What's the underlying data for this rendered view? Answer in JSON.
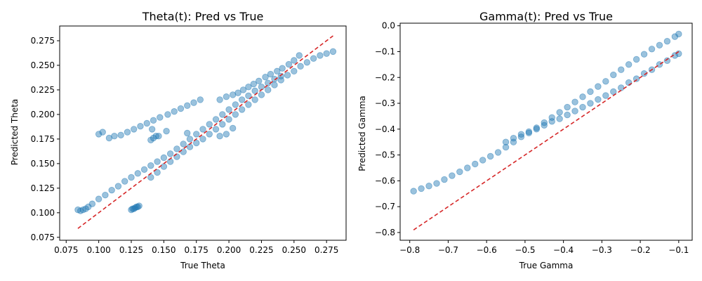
{
  "chart_data": [
    {
      "type": "scatter",
      "title": "Theta(t): Pred vs True",
      "xlabel": "True Theta",
      "ylabel": "Predicted Theta",
      "xlim": [
        0.07,
        0.29
      ],
      "ylim": [
        0.072,
        0.29
      ],
      "xticks": [
        "0.075",
        "0.100",
        "0.125",
        "0.150",
        "0.175",
        "0.200",
        "0.225",
        "0.250",
        "0.275"
      ],
      "yticks": [
        "0.075",
        "0.100",
        "0.125",
        "0.150",
        "0.175",
        "0.200",
        "0.225",
        "0.250",
        "0.275"
      ],
      "grid": false,
      "point_color": "#1f77b4",
      "reference_line_color": "#d62728",
      "reference_line": {
        "x": [
          0.084,
          0.28
        ],
        "y": [
          0.084,
          0.28
        ]
      },
      "series": [
        {
          "x": [
            0.084,
            0.086,
            0.088,
            0.09,
            0.092,
            0.095,
            0.1,
            0.105,
            0.11,
            0.115,
            0.12,
            0.125,
            0.13,
            0.135,
            0.14,
            0.145,
            0.15,
            0.155,
            0.16,
            0.165,
            0.17,
            0.175,
            0.18,
            0.185,
            0.19,
            0.195,
            0.2,
            0.205,
            0.21,
            0.215,
            0.22,
            0.225,
            0.23,
            0.235,
            0.24
          ],
          "y": [
            0.103,
            0.102,
            0.103,
            0.104,
            0.106,
            0.109,
            0.114,
            0.118,
            0.123,
            0.127,
            0.132,
            0.136,
            0.14,
            0.144,
            0.148,
            0.152,
            0.156,
            0.16,
            0.165,
            0.17,
            0.175,
            0.18,
            0.185,
            0.19,
            0.195,
            0.2,
            0.205,
            0.21,
            0.215,
            0.219,
            0.224,
            0.228,
            0.232,
            0.236,
            0.239
          ]
        },
        {
          "x": [
            0.14,
            0.145,
            0.15,
            0.155,
            0.16,
            0.165,
            0.17,
            0.175,
            0.18,
            0.185,
            0.19,
            0.195,
            0.2,
            0.205,
            0.21,
            0.215,
            0.22,
            0.225,
            0.23,
            0.235,
            0.24,
            0.245,
            0.25,
            0.255,
            0.26,
            0.265,
            0.27,
            0.275,
            0.28
          ],
          "y": [
            0.136,
            0.141,
            0.147,
            0.152,
            0.157,
            0.162,
            0.167,
            0.171,
            0.175,
            0.18,
            0.185,
            0.19,
            0.195,
            0.2,
            0.205,
            0.21,
            0.215,
            0.22,
            0.225,
            0.23,
            0.235,
            0.24,
            0.244,
            0.249,
            0.253,
            0.257,
            0.26,
            0.262,
            0.264
          ]
        },
        {
          "x": [
            0.1,
            0.103,
            0.108,
            0.112,
            0.117,
            0.122,
            0.127,
            0.132,
            0.137,
            0.142,
            0.147,
            0.153,
            0.158,
            0.163,
            0.168,
            0.173,
            0.178
          ],
          "y": [
            0.18,
            0.182,
            0.176,
            0.178,
            0.179,
            0.182,
            0.185,
            0.188,
            0.191,
            0.194,
            0.197,
            0.2,
            0.203,
            0.206,
            0.209,
            0.212,
            0.215
          ]
        },
        {
          "x": [
            0.193,
            0.198,
            0.203,
            0.207,
            0.211,
            0.215,
            0.219,
            0.223,
            0.228,
            0.232,
            0.237,
            0.241,
            0.246,
            0.25,
            0.254
          ],
          "y": [
            0.215,
            0.218,
            0.22,
            0.222,
            0.225,
            0.228,
            0.231,
            0.234,
            0.238,
            0.241,
            0.244,
            0.247,
            0.251,
            0.255,
            0.26
          ]
        },
        {
          "x": [
            0.125,
            0.126,
            0.127,
            0.128,
            0.129,
            0.13,
            0.131
          ],
          "y": [
            0.103,
            0.104,
            0.104,
            0.105,
            0.106,
            0.106,
            0.107
          ]
        },
        {
          "x": [
            0.14,
            0.142,
            0.144,
            0.146,
            0.141,
            0.152,
            0.168,
            0.193,
            0.198,
            0.203
          ],
          "y": [
            0.174,
            0.176,
            0.178,
            0.178,
            0.185,
            0.183,
            0.181,
            0.178,
            0.18,
            0.186
          ]
        }
      ]
    },
    {
      "type": "scatter",
      "title": "Gamma(t): Pred vs True",
      "xlabel": "True Gamma",
      "ylabel": "Predicted Gamma",
      "xlim": [
        -0.825,
        -0.065
      ],
      "ylim": [
        -0.83,
        0.01
      ],
      "xticks": [
        "−0.8",
        "−0.7",
        "−0.6",
        "−0.5",
        "−0.4",
        "−0.3",
        "−0.2",
        "−0.1"
      ],
      "yticks": [
        "−0.8",
        "−0.7",
        "−0.6",
        "−0.5",
        "−0.4",
        "−0.3",
        "−0.2",
        "−0.1",
        "0.0"
      ],
      "grid": false,
      "point_color": "#1f77b4",
      "reference_line_color": "#d62728",
      "reference_line": {
        "x": [
          -0.79,
          -0.1
        ],
        "y": [
          -0.79,
          -0.1
        ]
      },
      "series": [
        {
          "x": [
            -0.79,
            -0.77,
            -0.75,
            -0.73,
            -0.71,
            -0.69,
            -0.67,
            -0.65,
            -0.63,
            -0.61,
            -0.59,
            -0.57,
            -0.55,
            -0.53,
            -0.51,
            -0.49,
            -0.47,
            -0.45,
            -0.43,
            -0.41,
            -0.39,
            -0.37,
            -0.35,
            -0.33,
            -0.31,
            -0.29,
            -0.27,
            -0.25,
            -0.23,
            -0.21,
            -0.19,
            -0.17,
            -0.15,
            -0.13,
            -0.11,
            -0.1
          ],
          "y": [
            -0.64,
            -0.63,
            -0.62,
            -0.61,
            -0.595,
            -0.58,
            -0.565,
            -0.55,
            -0.535,
            -0.52,
            -0.505,
            -0.49,
            -0.47,
            -0.45,
            -0.43,
            -0.415,
            -0.395,
            -0.375,
            -0.355,
            -0.335,
            -0.315,
            -0.295,
            -0.275,
            -0.255,
            -0.235,
            -0.215,
            -0.19,
            -0.17,
            -0.15,
            -0.13,
            -0.11,
            -0.09,
            -0.075,
            -0.06,
            -0.042,
            -0.032
          ]
        },
        {
          "x": [
            -0.55,
            -0.53,
            -0.51,
            -0.49,
            -0.47,
            -0.45,
            -0.43,
            -0.41,
            -0.39,
            -0.37,
            -0.35,
            -0.33,
            -0.31,
            -0.29,
            -0.27,
            -0.25,
            -0.23,
            -0.21,
            -0.19,
            -0.17,
            -0.15,
            -0.13,
            -0.11,
            -0.1
          ],
          "y": [
            -0.45,
            -0.435,
            -0.42,
            -0.41,
            -0.4,
            -0.385,
            -0.37,
            -0.36,
            -0.345,
            -0.33,
            -0.315,
            -0.3,
            -0.285,
            -0.27,
            -0.255,
            -0.24,
            -0.22,
            -0.205,
            -0.185,
            -0.17,
            -0.15,
            -0.135,
            -0.115,
            -0.108
          ]
        }
      ]
    }
  ]
}
